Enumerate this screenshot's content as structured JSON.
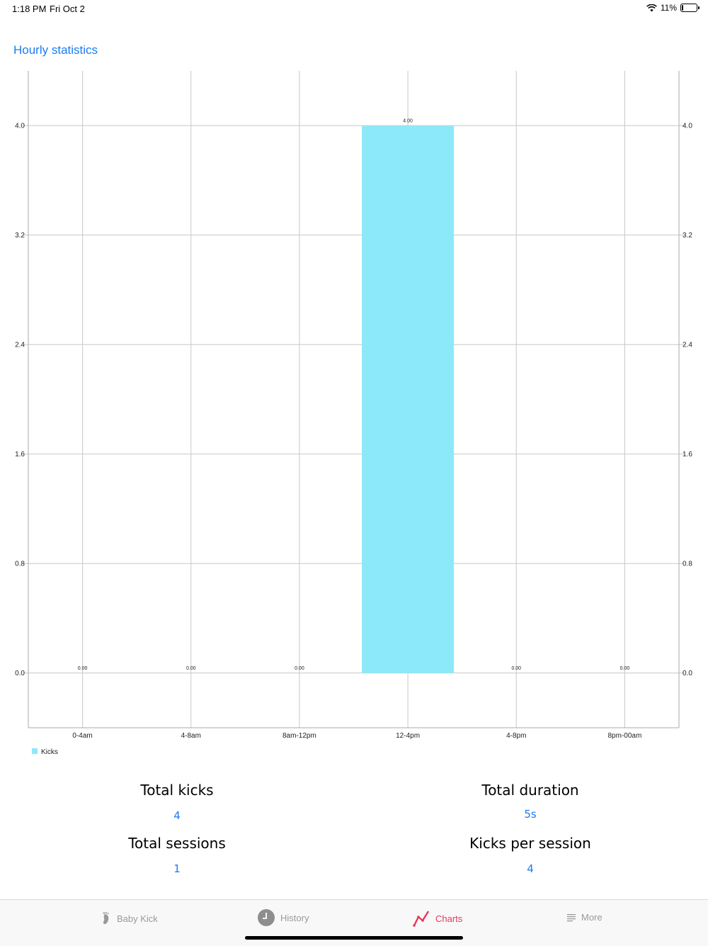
{
  "status_bar": {
    "time": "1:18 PM",
    "date": "Fri Oct 2",
    "battery": "11%"
  },
  "page": {
    "title": "Hourly statistics"
  },
  "chart_data": {
    "type": "bar",
    "categories": [
      "0-4am",
      "4-8am",
      "8am-12pm",
      "12-4pm",
      "4-8pm",
      "8pm-00am"
    ],
    "series": [
      {
        "name": "Kicks",
        "values": [
          0,
          0,
          0,
          4,
          0,
          0
        ],
        "color": "#8ce9fa"
      }
    ],
    "value_labels": [
      "0.00",
      "0.00",
      "0.00",
      "4.00",
      "0.00",
      "0.00"
    ],
    "y_ticks": [
      "0.0",
      "0.8",
      "1.6",
      "2.4",
      "3.2",
      "4.0"
    ],
    "y_tick_values": [
      0,
      0.8,
      1.6,
      2.4,
      3.2,
      4.0
    ],
    "ylim": [
      -0.4,
      4.4
    ],
    "grid": true,
    "legend": "bottom-left",
    "axes": "left-and-right"
  },
  "stats": {
    "total_kicks_label": "Total kicks",
    "total_kicks_value": "4",
    "total_duration_label": "Total duration",
    "total_duration_value": "5s",
    "total_sessions_label": "Total sessions",
    "total_sessions_value": "1",
    "kicks_per_session_label": "Kicks per session",
    "kicks_per_session_value": "4"
  },
  "tabs": [
    {
      "label": "Baby Kick",
      "icon": "foot-icon",
      "active": false
    },
    {
      "label": "History",
      "icon": "clock-icon",
      "active": false
    },
    {
      "label": "Charts",
      "icon": "line-chart-icon",
      "active": true
    },
    {
      "label": "More",
      "icon": "list-icon",
      "active": false
    }
  ],
  "colors": {
    "accent": "#1a7cf0",
    "active_tab": "#e8385a",
    "bar": "#8ce9fa",
    "grid": "#c8c8c8"
  }
}
